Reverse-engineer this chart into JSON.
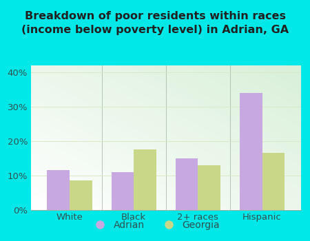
{
  "title": "Breakdown of poor residents within races\n(income below poverty level) in Adrian, GA",
  "categories": [
    "White",
    "Black",
    "2+ races",
    "Hispanic"
  ],
  "adrian_values": [
    11.5,
    11.0,
    15.0,
    34.0
  ],
  "georgia_values": [
    8.5,
    17.5,
    13.0,
    16.5
  ],
  "adrian_color": "#c8a8e0",
  "georgia_color": "#c8d888",
  "ylim": [
    0,
    42
  ],
  "yticks": [
    0,
    10,
    20,
    30,
    40
  ],
  "ytick_labels": [
    "0%",
    "10%",
    "20%",
    "30%",
    "40%"
  ],
  "bar_width": 0.35,
  "title_fontsize": 11.5,
  "tick_fontsize": 9.5,
  "legend_fontsize": 10,
  "outer_bg": "#00e8e8",
  "plot_bg_tl": "#d8f0d0",
  "plot_bg_br": "#f8fff8",
  "axis_color": "#a0b0a0",
  "grid_color": "#d8e8c8",
  "text_color": "#305050",
  "title_color": "#202020"
}
